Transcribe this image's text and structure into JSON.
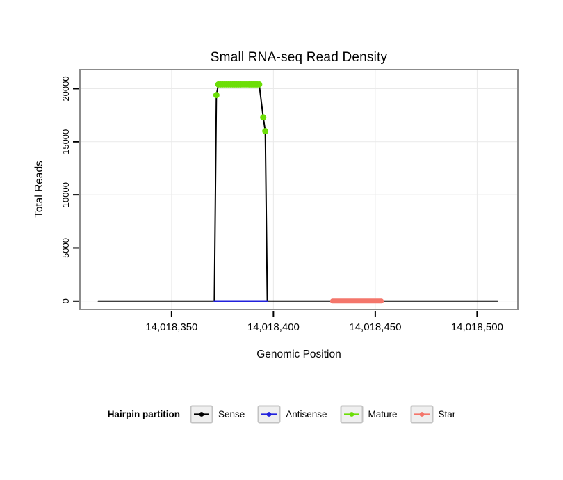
{
  "chart_data": {
    "type": "line",
    "title": "Small RNA-seq Read Density",
    "xlabel": "Genomic Position",
    "ylabel": "Total Reads",
    "legend_title": "Hairpin partition",
    "legend_position": "bottom",
    "grid": true,
    "xlim": [
      14018305,
      14018520
    ],
    "ylim": [
      -800,
      21800
    ],
    "x_ticks": [
      14018350,
      14018400,
      14018450,
      14018500
    ],
    "x_tick_labels": [
      "14,018,350",
      "14,018,400",
      "14,018,450",
      "14,018,500"
    ],
    "y_ticks": [
      0,
      5000,
      10000,
      15000,
      20000
    ],
    "y_tick_labels": [
      "0",
      "5000",
      "10000",
      "15000",
      "20000"
    ],
    "colors": {
      "grid": "#E9E9E9",
      "frame": "#8C8C8C",
      "tick": "#000000",
      "key_fill": "#EFEFEF",
      "key_border": "#C3C3C3"
    },
    "series": [
      {
        "name": "Sense",
        "color": "#000000",
        "draw": "line",
        "width": 2,
        "points": [
          [
            14018314,
            0
          ],
          [
            14018371,
            0
          ],
          [
            14018372,
            19400
          ],
          [
            14018373,
            20400
          ],
          [
            14018393,
            20400
          ],
          [
            14018395,
            17300
          ],
          [
            14018396,
            16000
          ],
          [
            14018397,
            0
          ],
          [
            14018510,
            0
          ]
        ]
      },
      {
        "name": "Antisense",
        "color": "#2222DD",
        "draw": "line",
        "width": 2.5,
        "points": [
          [
            14018371,
            0
          ],
          [
            14018397,
            0
          ]
        ]
      },
      {
        "name": "Star",
        "color": "#F4766B",
        "draw": "line",
        "width": 7,
        "points": [
          [
            14018429,
            0
          ],
          [
            14018453,
            0
          ]
        ]
      },
      {
        "name": "Mature",
        "color": "#6CDE07",
        "draw": "points",
        "point_radius": 4.5,
        "points": [
          [
            14018372,
            19400
          ],
          [
            14018373,
            20400
          ],
          [
            14018374,
            20400
          ],
          [
            14018375,
            20400
          ],
          [
            14018376,
            20400
          ],
          [
            14018377,
            20400
          ],
          [
            14018378,
            20400
          ],
          [
            14018379,
            20400
          ],
          [
            14018380,
            20400
          ],
          [
            14018381,
            20400
          ],
          [
            14018382,
            20400
          ],
          [
            14018383,
            20400
          ],
          [
            14018384,
            20400
          ],
          [
            14018385,
            20400
          ],
          [
            14018386,
            20400
          ],
          [
            14018387,
            20400
          ],
          [
            14018388,
            20400
          ],
          [
            14018389,
            20400
          ],
          [
            14018390,
            20400
          ],
          [
            14018391,
            20400
          ],
          [
            14018392,
            20400
          ],
          [
            14018393,
            20400
          ],
          [
            14018395,
            17300
          ],
          [
            14018396,
            16000
          ]
        ]
      }
    ],
    "legend_order": [
      "Sense",
      "Antisense",
      "Mature",
      "Star"
    ]
  }
}
